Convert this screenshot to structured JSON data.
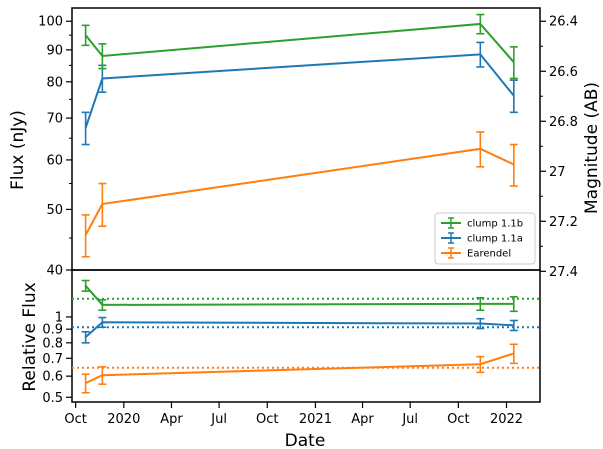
{
  "chart_data": [
    {
      "type": "line",
      "panel": "top",
      "ylabel": "Flux (nJy)",
      "y2label": "Magnitude (AB)",
      "y_scale": "log",
      "ylim": [
        40,
        105
      ],
      "yticks": [
        40,
        50,
        60,
        70,
        80,
        90,
        100
      ],
      "y2ticks": [
        "26.4",
        "26.6",
        "26.8",
        "27",
        "27.2",
        "27.4"
      ],
      "legend_position": "lower-right",
      "series": [
        {
          "name": "clump 1.1b",
          "color": "#2ca02c",
          "points": [
            {
              "x": "2019-10-20",
              "y": 95,
              "err": 3.5
            },
            {
              "x": "2019-11-21",
              "y": 88,
              "err": 4
            },
            {
              "x": "2021-11-12",
              "y": 99,
              "err": 3.5
            },
            {
              "x": "2022-01-15",
              "y": 86,
              "err": 5
            }
          ]
        },
        {
          "name": "clump 1.1a",
          "color": "#1f77b4",
          "points": [
            {
              "x": "2019-10-20",
              "y": 67.5,
              "err": 4
            },
            {
              "x": "2019-11-21",
              "y": 81,
              "err": 4
            },
            {
              "x": "2021-11-12",
              "y": 88.5,
              "err": 4
            },
            {
              "x": "2022-01-15",
              "y": 76,
              "err": 4.5
            }
          ]
        },
        {
          "name": "Earendel",
          "color": "#ff7f0e",
          "points": [
            {
              "x": "2019-10-20",
              "y": 45.5,
              "err": 3.5
            },
            {
              "x": "2019-11-21",
              "y": 51,
              "err": 4
            },
            {
              "x": "2021-11-12",
              "y": 62.5,
              "err": 4
            },
            {
              "x": "2022-01-15",
              "y": 59,
              "err": 4.5
            }
          ]
        }
      ]
    },
    {
      "type": "line",
      "panel": "bottom",
      "xlabel": "Date",
      "ylabel": "Relative Flux",
      "y_scale": "log",
      "ylim": [
        0.48,
        1.5
      ],
      "yticks": [
        "0.5",
        "0.6",
        "0.7",
        "0.8",
        "0.9",
        "1"
      ],
      "xticks": [
        "Oct",
        "2020",
        "Apr",
        "Jul",
        "Oct",
        "2021",
        "Apr",
        "Jul",
        "Oct",
        "2022"
      ],
      "series": [
        {
          "name": "clump 1.1b",
          "color": "#2ca02c",
          "reference_level": 1.17,
          "points": [
            {
              "x": "2019-10-20",
              "y": 1.31,
              "err": 0.06
            },
            {
              "x": "2019-11-21",
              "y": 1.11,
              "err": 0.05
            },
            {
              "x": "2021-11-12",
              "y": 1.12,
              "err": 0.06
            },
            {
              "x": "2022-01-15",
              "y": 1.12,
              "err": 0.07
            }
          ]
        },
        {
          "name": "clump 1.1a",
          "color": "#1f77b4",
          "reference_level": 0.915,
          "points": [
            {
              "x": "2019-10-20",
              "y": 0.84,
              "err": 0.04
            },
            {
              "x": "2019-11-21",
              "y": 0.955,
              "err": 0.04
            },
            {
              "x": "2021-11-12",
              "y": 0.945,
              "err": 0.04
            },
            {
              "x": "2022-01-15",
              "y": 0.93,
              "err": 0.04
            }
          ]
        },
        {
          "name": "Earendel",
          "color": "#ff7f0e",
          "reference_level": 0.645,
          "points": [
            {
              "x": "2019-10-20",
              "y": 0.565,
              "err": 0.045
            },
            {
              "x": "2019-11-21",
              "y": 0.605,
              "err": 0.045
            },
            {
              "x": "2021-11-12",
              "y": 0.665,
              "err": 0.045
            },
            {
              "x": "2022-01-15",
              "y": 0.73,
              "err": 0.06
            }
          ]
        }
      ]
    }
  ]
}
